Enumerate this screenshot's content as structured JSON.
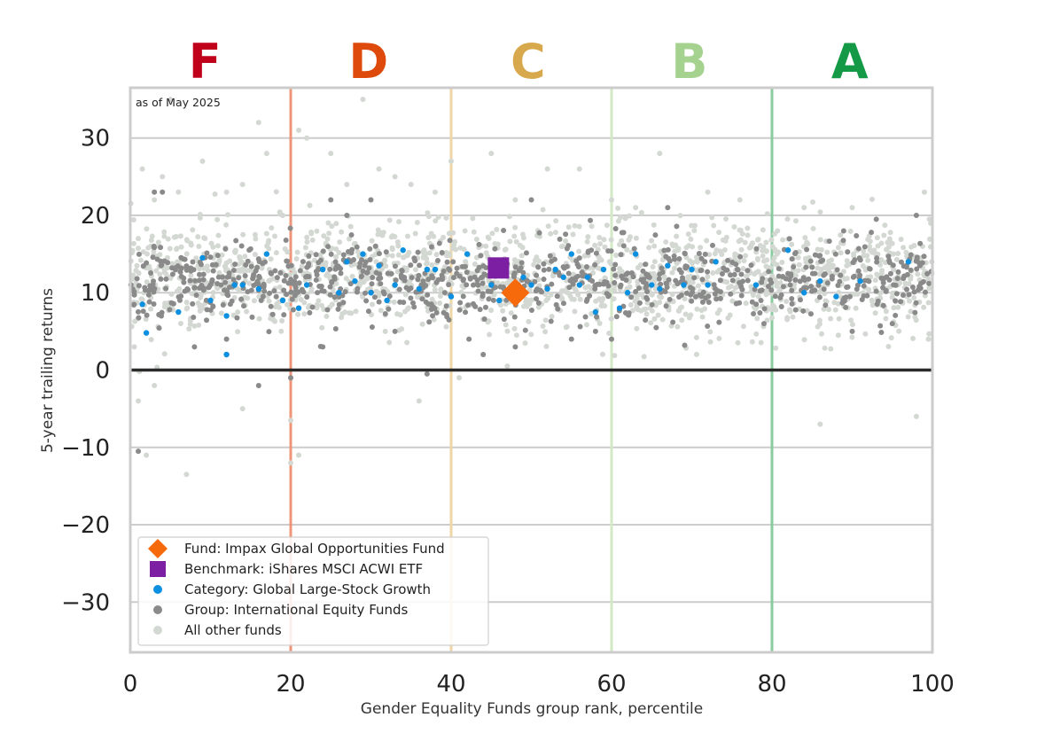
{
  "chart_data": {
    "type": "scatter",
    "title": "",
    "annotation": "as of May 2025",
    "xlabel": "Gender Equality Funds group rank, percentile",
    "ylabel": "5-year trailing returns",
    "xlim": [
      0,
      100
    ],
    "ylim": [
      -36.5,
      36.5
    ],
    "xticks": [
      0,
      20,
      40,
      60,
      80,
      100
    ],
    "yticks": [
      -30,
      -20,
      -10,
      0,
      10,
      20,
      30
    ],
    "grid": "horizontal",
    "legend_position": "bottom-left",
    "grade_bands": [
      {
        "label": "F",
        "center": 9.3,
        "color": "#c0001b"
      },
      {
        "label": "D",
        "center": 29.7,
        "color": "#de4a0b"
      },
      {
        "label": "C",
        "center": 49.6,
        "color": "#d8a94c"
      },
      {
        "label": "B",
        "center": 69.7,
        "color": "#a5d28f"
      },
      {
        "label": "A",
        "center": 89.7,
        "color": "#149a46"
      }
    ],
    "grade_boundaries": [
      {
        "x": 20,
        "color": "#ee9478"
      },
      {
        "x": 40,
        "color": "#efd6a6"
      },
      {
        "x": 60,
        "color": "#d3e9c6"
      },
      {
        "x": 80,
        "color": "#88cc9f"
      },
      {
        "x": 100,
        "color": "#a8d8b8"
      }
    ],
    "series": [
      {
        "name": "All other funds",
        "color": "#d3d8d2",
        "marker": "circle",
        "count": 1600,
        "distribution": {
          "center": 12.0,
          "spread": 3.5
        },
        "points": [
          [
            1.5,
            26
          ],
          [
            3,
            22
          ],
          [
            4,
            25
          ],
          [
            5,
            35
          ],
          [
            6,
            23
          ],
          [
            12,
            23
          ],
          [
            14,
            24
          ],
          [
            16,
            32
          ],
          [
            17,
            28
          ],
          [
            19,
            20
          ],
          [
            20,
            -6.5
          ],
          [
            20,
            -12
          ],
          [
            21,
            -11
          ],
          [
            21,
            31
          ],
          [
            22,
            30
          ],
          [
            27,
            24
          ],
          [
            29,
            35
          ],
          [
            31,
            26
          ],
          [
            33,
            25
          ],
          [
            35,
            24
          ],
          [
            38,
            23
          ],
          [
            40,
            27
          ],
          [
            45,
            28
          ],
          [
            52,
            26
          ],
          [
            56,
            26
          ],
          [
            60,
            22
          ],
          [
            66,
            28
          ],
          [
            72,
            23
          ],
          [
            76,
            22
          ],
          [
            86,
            -7
          ],
          [
            98,
            -6
          ],
          [
            7,
            -13.5
          ],
          [
            2,
            -11
          ],
          [
            1,
            -4
          ],
          [
            3,
            -2
          ],
          [
            14,
            -5
          ],
          [
            36,
            -4
          ],
          [
            41,
            -1
          ],
          [
            9,
            27
          ],
          [
            25,
            28
          ],
          [
            48,
            22
          ],
          [
            63,
            21
          ],
          [
            84,
            21
          ],
          [
            90,
            21
          ],
          [
            1,
            17
          ],
          [
            99,
            23
          ],
          [
            0.5,
            3
          ],
          [
            99.5,
            4
          ],
          [
            44,
            2
          ],
          [
            47,
            0.5
          ]
        ]
      },
      {
        "name": "Group: International Equity Funds",
        "color": "#8a8a8a",
        "marker": "circle",
        "count": 900,
        "distribution": {
          "center": 11.5,
          "spread": 2.5
        },
        "points": [
          [
            1,
            -10.5
          ],
          [
            3,
            23
          ],
          [
            4,
            23
          ],
          [
            20,
            -1
          ],
          [
            16,
            -2
          ],
          [
            25,
            22
          ],
          [
            27,
            20
          ],
          [
            30,
            22
          ],
          [
            37,
            -0.5
          ],
          [
            50,
            22
          ],
          [
            67,
            21
          ],
          [
            79,
            6
          ],
          [
            90,
            5
          ],
          [
            95,
            6
          ],
          [
            98,
            20
          ],
          [
            93,
            19.5
          ],
          [
            44,
            2
          ],
          [
            58,
            5
          ],
          [
            60,
            4
          ],
          [
            12,
            4
          ],
          [
            8,
            3
          ],
          [
            24,
            3
          ],
          [
            33,
            5
          ],
          [
            55,
            4
          ],
          [
            48,
            3
          ]
        ]
      },
      {
        "name": "Category: Global Large-Stock Growth",
        "color": "#0b8fe0",
        "marker": "circle",
        "points": [
          [
            1.5,
            8.5
          ],
          [
            2,
            4.8
          ],
          [
            6,
            7.5
          ],
          [
            9,
            14.5
          ],
          [
            12,
            7
          ],
          [
            12,
            2
          ],
          [
            13,
            11
          ],
          [
            14,
            11
          ],
          [
            16,
            10.5
          ],
          [
            17,
            15
          ],
          [
            19,
            9
          ],
          [
            21,
            8
          ],
          [
            22,
            11
          ],
          [
            24,
            13
          ],
          [
            26,
            10
          ],
          [
            27,
            14
          ],
          [
            28,
            11.5
          ],
          [
            29,
            15
          ],
          [
            30,
            10
          ],
          [
            31,
            13.5
          ],
          [
            33,
            11
          ],
          [
            34,
            15.5
          ],
          [
            36,
            10.5
          ],
          [
            37,
            13
          ],
          [
            38,
            13
          ],
          [
            40,
            9.5
          ],
          [
            42,
            15
          ],
          [
            45,
            11
          ],
          [
            47,
            10
          ],
          [
            49,
            12
          ],
          [
            50,
            11
          ],
          [
            52,
            10.5
          ],
          [
            53,
            13
          ],
          [
            55,
            15
          ],
          [
            56,
            11
          ],
          [
            57,
            12
          ],
          [
            58,
            7.5
          ],
          [
            59,
            13
          ],
          [
            61,
            8
          ],
          [
            62,
            10
          ],
          [
            63,
            15
          ],
          [
            65,
            11
          ],
          [
            66,
            10.5
          ],
          [
            67,
            13.5
          ],
          [
            69,
            11
          ],
          [
            70,
            13
          ],
          [
            72,
            11
          ],
          [
            73,
            14
          ],
          [
            78,
            11
          ],
          [
            82,
            15.5
          ],
          [
            84,
            10
          ],
          [
            86,
            11.5
          ],
          [
            88,
            9.5
          ],
          [
            91,
            11.5
          ],
          [
            97,
            14
          ],
          [
            10,
            9
          ],
          [
            32,
            9
          ],
          [
            46,
            9
          ],
          [
            54,
            12
          ]
        ]
      },
      {
        "name": "Benchmark: iShares MSCI ACWI ETF",
        "color": "#7d1fa3",
        "marker": "square",
        "points": [
          [
            45.9,
            13.2
          ]
        ]
      },
      {
        "name": "Fund: Impax Global Opportunities Fund",
        "color": "#f76a0c",
        "marker": "diamond",
        "points": [
          [
            48.0,
            10.0
          ]
        ]
      }
    ]
  }
}
